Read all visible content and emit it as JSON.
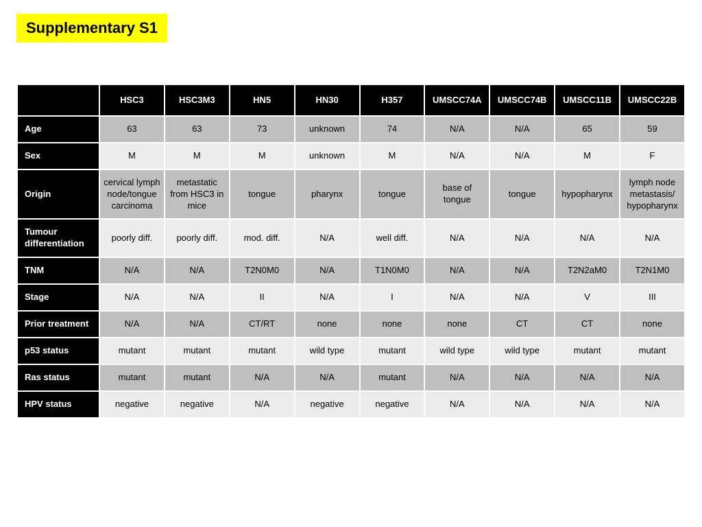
{
  "title": "Supplementary S1",
  "table": {
    "type": "table",
    "background_color": "#ffffff",
    "header_bg": "#000000",
    "header_fg": "#ffffff",
    "rowheader_bg": "#000000",
    "rowheader_fg": "#ffffff",
    "row_dark_bg": "#bfbfbf",
    "row_light_bg": "#ececec",
    "border_color": "#ffffff",
    "font_size": 13,
    "header_font_weight": "bold",
    "columns": [
      "",
      "HSC3",
      "HSC3M3",
      "HN5",
      "HN30",
      "H357",
      "UMSCC74A",
      "UMSCC74B",
      "UMSCC11B",
      "UMSCC22B"
    ],
    "rows": [
      {
        "label": "Age",
        "shade": "dark",
        "cells": [
          "63",
          "63",
          "73",
          "unknown",
          "74",
          "N/A",
          "N/A",
          "65",
          "59"
        ]
      },
      {
        "label": "Sex",
        "shade": "light",
        "cells": [
          "M",
          "M",
          "M",
          "unknown",
          "M",
          "N/A",
          "N/A",
          "M",
          "F"
        ]
      },
      {
        "label": "Origin",
        "shade": "dark",
        "cells": [
          "cervical lymph node/tongue carcinoma",
          "metastatic from HSC3 in mice",
          "tongue",
          "pharynx",
          "tongue",
          "base of tongue",
          "tongue",
          "hypopharynx",
          "lymph node metastasis/ hypopharynx"
        ]
      },
      {
        "label": "Tumour differentiation",
        "shade": "light",
        "cells": [
          "poorly diff.",
          "poorly diff.",
          "mod. diff.",
          "N/A",
          "well diff.",
          "N/A",
          "N/A",
          "N/A",
          "N/A"
        ]
      },
      {
        "label": "TNM",
        "shade": "dark",
        "cells": [
          "N/A",
          "N/A",
          "T2N0M0",
          "N/A",
          "T1N0M0",
          "N/A",
          "N/A",
          "T2N2aM0",
          "T2N1M0"
        ]
      },
      {
        "label": "Stage",
        "shade": "light",
        "cells": [
          "N/A",
          "N/A",
          "II",
          "N/A",
          "I",
          "N/A",
          "N/A",
          "V",
          "III"
        ]
      },
      {
        "label": "Prior treatment",
        "shade": "dark",
        "cells": [
          "N/A",
          "N/A",
          "CT/RT",
          "none",
          "none",
          "none",
          "CT",
          "CT",
          "none"
        ]
      },
      {
        "label": "p53 status",
        "shade": "light",
        "cells": [
          "mutant",
          "mutant",
          "mutant",
          "wild type",
          "mutant",
          "wild type",
          "wild type",
          "mutant",
          "mutant"
        ]
      },
      {
        "label": "Ras status",
        "shade": "dark",
        "cells": [
          "mutant",
          "mutant",
          "N/A",
          "N/A",
          "mutant",
          "N/A",
          "N/A",
          "N/A",
          "N/A"
        ]
      },
      {
        "label": "HPV status",
        "shade": "light",
        "cells": [
          "negative",
          "negative",
          "N/A",
          "negative",
          "negative",
          "N/A",
          "N/A",
          "N/A",
          "N/A"
        ]
      }
    ]
  }
}
